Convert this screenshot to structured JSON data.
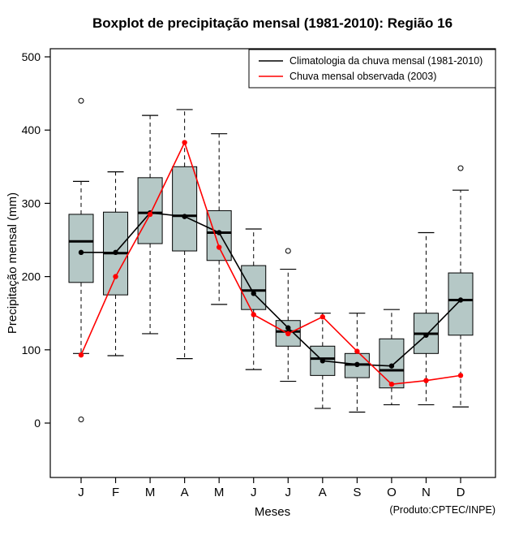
{
  "title": "Boxplot de precipitação mensal (1981-2010): Região 16",
  "credit": "(Produto:CPTEC/INPE)",
  "chart_data": {
    "type": "boxplot",
    "title": "Boxplot de precipitação mensal (1981-2010): Região 16",
    "xlabel": "Meses",
    "ylabel": "Precipitação mensal (mm)",
    "ylim": [
      0,
      500
    ],
    "yticks": [
      0,
      100,
      200,
      300,
      400,
      500
    ],
    "grid": false,
    "legend_position": "top-right",
    "box_fill": "#b5c8c6",
    "categories": [
      "J",
      "F",
      "M",
      "A",
      "M",
      "J",
      "J",
      "A",
      "S",
      "O",
      "N",
      "D"
    ],
    "boxes": [
      {
        "low": 95,
        "q1": 192,
        "median": 248,
        "q3": 285,
        "high": 330,
        "outliers": [
          440,
          5
        ]
      },
      {
        "low": 92,
        "q1": 175,
        "median": 232,
        "q3": 288,
        "high": 343,
        "outliers": []
      },
      {
        "low": 122,
        "q1": 245,
        "median": 287,
        "q3": 335,
        "high": 420,
        "outliers": []
      },
      {
        "low": 88,
        "q1": 235,
        "median": 283,
        "q3": 350,
        "high": 428,
        "outliers": []
      },
      {
        "low": 162,
        "q1": 222,
        "median": 260,
        "q3": 290,
        "high": 395,
        "outliers": []
      },
      {
        "low": 73,
        "q1": 155,
        "median": 181,
        "q3": 215,
        "high": 265,
        "outliers": []
      },
      {
        "low": 57,
        "q1": 105,
        "median": 125,
        "q3": 140,
        "high": 210,
        "outliers": [
          235
        ]
      },
      {
        "low": 20,
        "q1": 65,
        "median": 88,
        "q3": 105,
        "high": 150,
        "outliers": []
      },
      {
        "low": 15,
        "q1": 62,
        "median": 80,
        "q3": 95,
        "high": 150,
        "outliers": []
      },
      {
        "low": 25,
        "q1": 48,
        "median": 72,
        "q3": 115,
        "high": 155,
        "outliers": []
      },
      {
        "low": 25,
        "q1": 95,
        "median": 122,
        "q3": 150,
        "high": 260,
        "outliers": []
      },
      {
        "low": 22,
        "q1": 120,
        "median": 168,
        "q3": 205,
        "high": 318,
        "outliers": [
          348
        ]
      }
    ],
    "series": [
      {
        "name": "Climatologia da chuva mensal (1981-2010)",
        "color": "#000000",
        "values": [
          233,
          233,
          287,
          282,
          260,
          177,
          130,
          85,
          80,
          78,
          120,
          168
        ]
      },
      {
        "name": "Chuva mensal observada (2003)",
        "color": "#ff0000",
        "values": [
          93,
          200,
          285,
          383,
          240,
          148,
          122,
          145,
          98,
          53,
          58,
          65
        ]
      }
    ]
  }
}
